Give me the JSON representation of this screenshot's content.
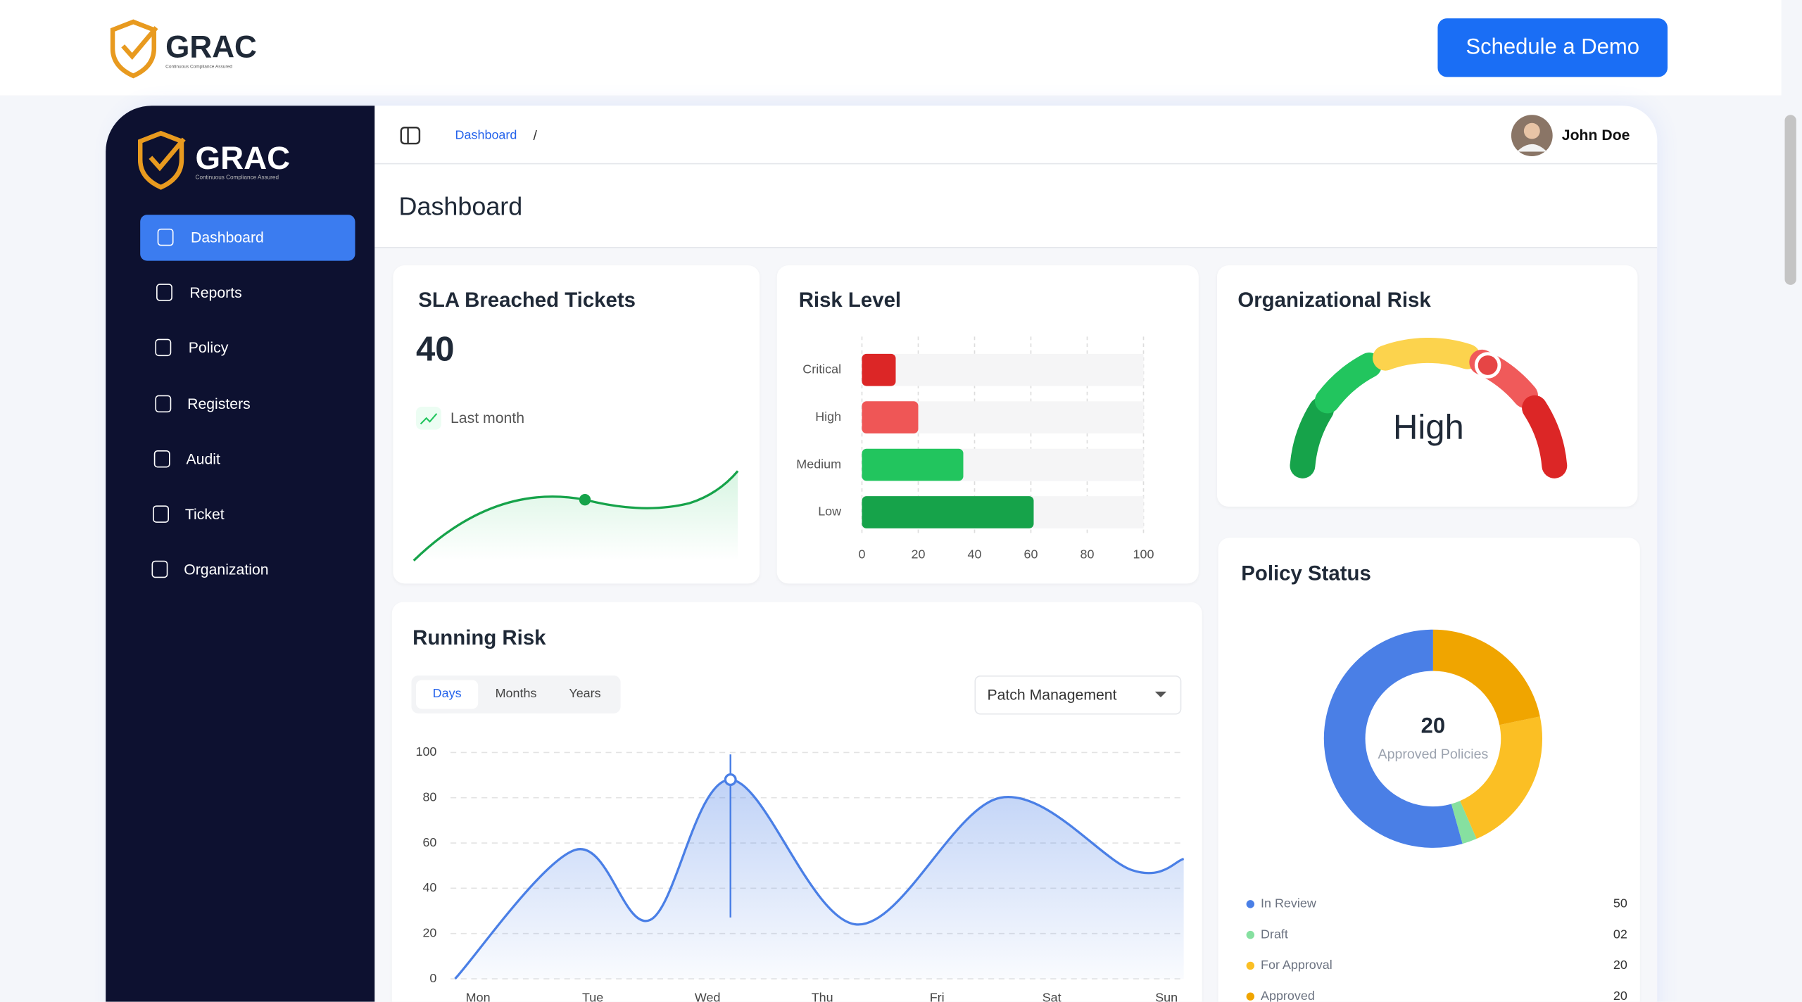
{
  "header": {
    "logo": "GRAC",
    "tagline": "Continuous Compliance Assured",
    "cta": "Schedule a Demo"
  },
  "sidebar": {
    "logo": "GRAC",
    "tagline": "Continuous Compliance Assured",
    "nav": [
      "Dashboard",
      "Reports",
      "Policy",
      "Registers",
      "Audit",
      "Ticket",
      "Organization"
    ],
    "active_index": 0
  },
  "topbar": {
    "breadcrumb": "Dashboard",
    "separator": "/",
    "user": "John Doe"
  },
  "page_title": "Dashboard",
  "sla": {
    "title": "SLA Breached Tickets",
    "value": 40,
    "period": "Last month"
  },
  "risk_level": {
    "type": "bar",
    "title": "Risk Level",
    "categories": [
      "Critical",
      "High",
      "Medium",
      "Low"
    ],
    "values": [
      12,
      20,
      36,
      61
    ],
    "colors": [
      "#dc2626",
      "#ef5656",
      "#22c55e",
      "#16a34a"
    ],
    "xlim": [
      0,
      100
    ],
    "xticks": [
      0,
      20,
      40,
      60,
      80,
      100
    ],
    "grid": true
  },
  "org_risk": {
    "title": "Organizational Risk",
    "level": "High"
  },
  "running_risk": {
    "type": "line",
    "title": "Running Risk",
    "tabs": [
      "Days",
      "Months",
      "Years"
    ],
    "active_tab": 0,
    "filter": "Patch Management",
    "color": "#4a7fe6",
    "x": [
      -0.2,
      0.85,
      1.5,
      2.2,
      3.3,
      4.55,
      5.7,
      6.15
    ],
    "values": [
      0,
      57,
      26,
      88,
      24,
      80,
      48,
      53
    ],
    "highlight_index": 3,
    "xlim": [
      -0.2,
      6.15
    ],
    "xticks": [
      {
        "value": 0,
        "label": "Mon"
      },
      {
        "value": 1,
        "label": "Tue"
      },
      {
        "value": 2,
        "label": "Wed"
      },
      {
        "value": 3,
        "label": "Thu"
      },
      {
        "value": 4,
        "label": "Fri"
      },
      {
        "value": 5,
        "label": "Sat"
      },
      {
        "value": 6,
        "label": "Sun"
      }
    ],
    "ylim": [
      0,
      100
    ],
    "yticks": [
      0,
      20,
      40,
      60,
      80,
      100
    ],
    "grid": true
  },
  "policy_status": {
    "type": "pie",
    "title": "Policy Status",
    "center_value": 20,
    "center_label": "Approved Policies",
    "categories": [
      "In Review",
      "Draft",
      "For Approval",
      "Approved"
    ],
    "values": [
      50,
      2,
      20,
      20
    ],
    "value_labels": [
      "50",
      "02",
      "20",
      "20"
    ],
    "colors": [
      "#4a7fe6",
      "#86e0a0",
      "#fbbf24",
      "#f0a500"
    ]
  }
}
